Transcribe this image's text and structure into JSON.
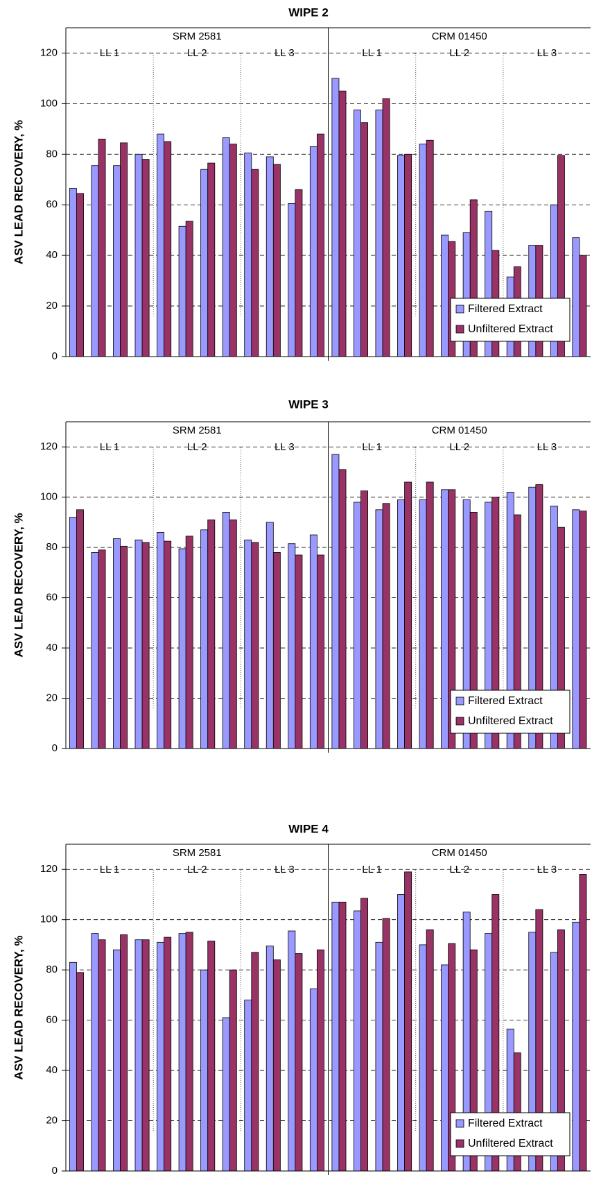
{
  "chart_data": [
    {
      "type": "bar",
      "title": "WIPE 2",
      "y_label": "ASV LEAD RECOVERY, %",
      "sections": [
        {
          "name": "SRM 2581",
          "subgroups": [
            "LL 1",
            "LL 2",
            "LL 3"
          ]
        },
        {
          "name": "CRM 01450",
          "subgroups": [
            "LL 1",
            "LL 2",
            "LL 3"
          ]
        }
      ],
      "series": [
        {
          "name": "Filtered Extract",
          "color": "#9999ff",
          "values": [
            66.5,
            75.5,
            75.5,
            80,
            88,
            51.5,
            74,
            86.5,
            80.5,
            79,
            60.5,
            83,
            110,
            97.5,
            97.5,
            79.5,
            84,
            48,
            49,
            57.5,
            31.5,
            44,
            60,
            47
          ]
        },
        {
          "name": "Unfiltered Extract",
          "color": "#993366",
          "values": [
            64.5,
            86,
            84.5,
            78,
            85,
            53.5,
            76.5,
            84,
            74,
            76,
            66,
            88,
            105,
            92.5,
            102,
            80,
            85.5,
            45.5,
            62,
            42,
            35.5,
            44,
            79.5,
            40
          ]
        }
      ],
      "ylim": [
        0,
        130
      ],
      "yticks": [
        0,
        20,
        40,
        60,
        80,
        100,
        120
      ],
      "grid": true,
      "legend": "lower right"
    },
    {
      "type": "bar",
      "title": "WIPE 3",
      "y_label": "ASV LEAD RECOVERY, %",
      "sections": [
        {
          "name": "SRM 2581",
          "subgroups": [
            "LL 1",
            "LL 2",
            "LL 3"
          ]
        },
        {
          "name": "CRM 01450",
          "subgroups": [
            "LL 1",
            "LL 2",
            "LL 3"
          ]
        }
      ],
      "series": [
        {
          "name": "Filtered Extract",
          "color": "#9999ff",
          "values": [
            92,
            78,
            83.5,
            83,
            86,
            79.5,
            87,
            94,
            83,
            90,
            81.5,
            85,
            117,
            98,
            95,
            99,
            99,
            103,
            99,
            98,
            102,
            104,
            96.5,
            95
          ]
        },
        {
          "name": "Unfiltered Extract",
          "color": "#993366",
          "values": [
            95,
            79,
            80.5,
            82,
            82.5,
            84.5,
            91,
            91,
            82,
            78,
            77,
            77,
            111,
            102.5,
            97.5,
            106,
            106,
            103,
            94,
            100,
            93,
            105,
            88,
            94.5
          ]
        }
      ],
      "ylim": [
        0,
        130
      ],
      "yticks": [
        0,
        20,
        40,
        60,
        80,
        100,
        120
      ],
      "grid": true,
      "legend": "lower right"
    },
    {
      "type": "bar",
      "title": "WIPE 4",
      "y_label": "ASV LEAD RECOVERY, %",
      "sections": [
        {
          "name": "SRM 2581",
          "subgroups": [
            "LL 1",
            "LL 2",
            "LL 3"
          ]
        },
        {
          "name": "CRM 01450",
          "subgroups": [
            "LL 1",
            "LL 2",
            "LL 3"
          ]
        }
      ],
      "series": [
        {
          "name": "Filtered Extract",
          "color": "#9999ff",
          "values": [
            83,
            94.5,
            88,
            92,
            91,
            94.5,
            80,
            61,
            68,
            89.5,
            95.5,
            72.5,
            107,
            103.5,
            91,
            110,
            90,
            82,
            103,
            94.5,
            56.5,
            95,
            87,
            99
          ]
        },
        {
          "name": "Unfiltered Extract",
          "color": "#993366",
          "values": [
            79,
            92,
            94,
            92,
            93,
            95,
            91.5,
            80,
            87,
            84,
            86.5,
            88,
            107,
            108.5,
            100.5,
            119,
            96,
            90.5,
            88,
            110,
            47,
            104,
            96,
            118
          ]
        }
      ],
      "ylim": [
        0,
        130
      ],
      "yticks": [
        0,
        20,
        40,
        60,
        80,
        100,
        120
      ],
      "grid": true,
      "legend": "lower right"
    }
  ]
}
